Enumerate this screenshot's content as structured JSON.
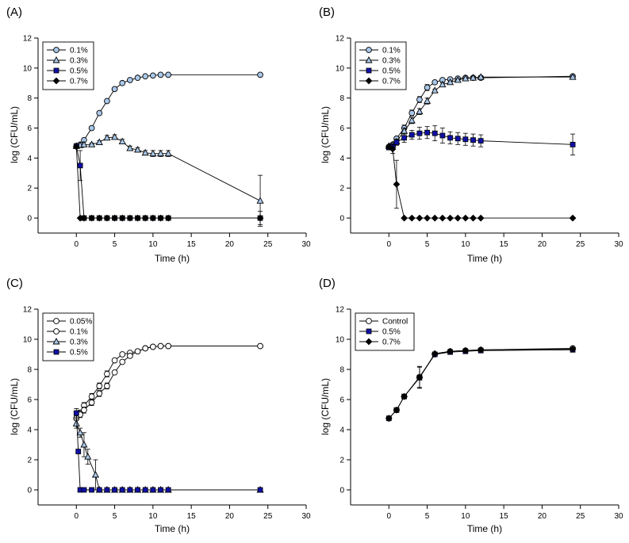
{
  "colors": {
    "light_blue": "#a9c8ea",
    "white": "#ffffff",
    "blue": "#1010a8",
    "black": "#000000",
    "line": "#000000"
  },
  "chart_data": [
    {
      "type": "line",
      "panel_label": "(A)",
      "xlabel": "Time (h)",
      "ylabel": "log (CFU/mL)",
      "xlim": [
        -5,
        30
      ],
      "ylim": [
        -1,
        12
      ],
      "xticks": [
        "0",
        "5",
        "10",
        "15",
        "20",
        "25",
        "30"
      ],
      "yticks": [
        "0",
        "2",
        "4",
        "6",
        "8",
        "10",
        "12"
      ],
      "legend_position": "top-left",
      "series": [
        {
          "name": "0.1%",
          "marker": "circle",
          "fill": "light_blue",
          "x": [
            0,
            0.5,
            1,
            2,
            3,
            4,
            5,
            6,
            7,
            8,
            9,
            10,
            11,
            12,
            24
          ],
          "y": [
            4.8,
            4.9,
            5.2,
            6.0,
            7.0,
            7.8,
            8.6,
            9.0,
            9.2,
            9.35,
            9.45,
            9.5,
            9.55,
            9.55,
            9.55
          ]
        },
        {
          "name": "0.3%",
          "marker": "triangle",
          "fill": "light_blue",
          "x": [
            0,
            0.5,
            1,
            2,
            3,
            4,
            5,
            6,
            7,
            8,
            9,
            10,
            11,
            12,
            24
          ],
          "y": [
            4.8,
            4.85,
            4.9,
            4.9,
            5.05,
            5.35,
            5.4,
            5.1,
            4.65,
            4.55,
            4.35,
            4.3,
            4.3,
            4.3,
            1.15
          ],
          "err": [
            0,
            0,
            0,
            0.1,
            0.1,
            0.15,
            0.15,
            0.15,
            0.15,
            0.15,
            0.15,
            0.2,
            0.2,
            0.2,
            1.7
          ]
        },
        {
          "name": "0.5%",
          "marker": "square",
          "fill": "blue",
          "x": [
            0,
            0.5,
            1,
            2,
            3,
            4,
            5,
            6,
            7,
            8,
            9,
            10,
            11,
            12,
            24
          ],
          "y": [
            4.8,
            3.5,
            0,
            0,
            0,
            0,
            0,
            0,
            0,
            0,
            0,
            0,
            0,
            0,
            0
          ],
          "err": [
            0,
            1.0,
            0,
            0,
            0,
            0,
            0,
            0,
            0,
            0,
            0,
            0,
            0,
            0,
            0
          ]
        },
        {
          "name": "0.7%",
          "marker": "diamond",
          "fill": "black",
          "x": [
            0,
            0.5,
            1,
            2,
            3,
            4,
            5,
            6,
            7,
            8,
            9,
            10,
            11,
            12,
            24
          ],
          "y": [
            4.75,
            0,
            0,
            0,
            0,
            0,
            0,
            0,
            0,
            0,
            0,
            0,
            0,
            0,
            0
          ],
          "err": [
            0,
            0,
            0,
            0,
            0,
            0,
            0,
            0,
            0,
            0,
            0,
            0,
            0,
            0,
            0.45
          ]
        }
      ]
    },
    {
      "type": "line",
      "panel_label": "(B)",
      "xlabel": "Time (h)",
      "ylabel": "log (CFU/mL)",
      "xlim": [
        -5,
        30
      ],
      "ylim": [
        -1,
        12
      ],
      "xticks": [
        "0",
        "5",
        "10",
        "15",
        "20",
        "25",
        "30"
      ],
      "yticks": [
        "0",
        "2",
        "4",
        "6",
        "8",
        "10",
        "12"
      ],
      "legend_position": "top-left",
      "series": [
        {
          "name": "0.1%",
          "marker": "circle",
          "fill": "light_blue",
          "x": [
            0,
            0.5,
            1,
            2,
            3,
            4,
            5,
            6,
            7,
            8,
            9,
            10,
            11,
            12,
            24
          ],
          "y": [
            4.75,
            4.9,
            5.3,
            6.0,
            7.0,
            7.9,
            8.7,
            9.05,
            9.2,
            9.25,
            9.3,
            9.35,
            9.35,
            9.35,
            9.45
          ],
          "err": [
            0,
            0,
            0.1,
            0.2,
            0.2,
            0.2,
            0.2,
            0.1,
            0.1,
            0.1,
            0.1,
            0.1,
            0.1,
            0.1,
            0.1
          ]
        },
        {
          "name": "0.3%",
          "marker": "triangle",
          "fill": "light_blue",
          "x": [
            0,
            0.5,
            1,
            2,
            3,
            4,
            5,
            6,
            7,
            8,
            9,
            10,
            11,
            12,
            24
          ],
          "y": [
            4.8,
            4.9,
            5.1,
            5.8,
            6.5,
            7.1,
            7.8,
            8.5,
            8.9,
            9.05,
            9.2,
            9.3,
            9.35,
            9.4,
            9.4
          ],
          "err": [
            0,
            0,
            0.1,
            0.2,
            0.2,
            0.2,
            0.2,
            0.1,
            0.1,
            0.1,
            0.1,
            0.1,
            0.1,
            0.1,
            0.1
          ]
        },
        {
          "name": "0.5%",
          "marker": "square",
          "fill": "blue",
          "x": [
            0,
            0.5,
            1,
            2,
            3,
            4,
            5,
            6,
            7,
            8,
            9,
            10,
            11,
            12,
            24
          ],
          "y": [
            4.7,
            4.8,
            5.05,
            5.35,
            5.55,
            5.65,
            5.7,
            5.65,
            5.5,
            5.35,
            5.3,
            5.25,
            5.2,
            5.15,
            4.9
          ],
          "err": [
            0,
            0,
            0.2,
            0.3,
            0.3,
            0.4,
            0.4,
            0.5,
            0.5,
            0.4,
            0.4,
            0.4,
            0.4,
            0.4,
            0.7
          ]
        },
        {
          "name": "0.7%",
          "marker": "diamond",
          "fill": "black",
          "x": [
            0,
            0.5,
            1,
            2,
            3,
            4,
            5,
            6,
            7,
            8,
            9,
            10,
            11,
            12,
            24
          ],
          "y": [
            4.75,
            4.6,
            2.25,
            0,
            0,
            0,
            0,
            0,
            0,
            0,
            0,
            0,
            0,
            0,
            0
          ],
          "err": [
            0,
            0.3,
            1.6,
            0,
            0,
            0,
            0,
            0,
            0,
            0,
            0,
            0,
            0,
            0,
            0
          ]
        }
      ]
    },
    {
      "type": "line",
      "panel_label": "(C)",
      "xlabel": "Time (h)",
      "ylabel": "log (CFU/mL)",
      "xlim": [
        -5,
        30
      ],
      "ylim": [
        -1,
        12
      ],
      "xticks": [
        "0",
        "5",
        "10",
        "15",
        "20",
        "25",
        "30"
      ],
      "yticks": [
        "0",
        "2",
        "4",
        "6",
        "8",
        "10",
        "12"
      ],
      "legend_position": "top-left",
      "series": [
        {
          "name": "0.05%",
          "marker": "circle",
          "fill": "white",
          "x": [
            0,
            0.5,
            1,
            2,
            3,
            4,
            5,
            6,
            7,
            8,
            9,
            10,
            11,
            12,
            24
          ],
          "y": [
            4.75,
            5.1,
            5.6,
            6.2,
            6.9,
            7.7,
            8.6,
            9.0,
            9.1,
            9.2,
            9.4,
            9.5,
            9.55,
            9.55,
            9.55
          ],
          "err": [
            0,
            0.2,
            0.2,
            0.2,
            0.2,
            0.2,
            0.1,
            0.1,
            0.1,
            0.1,
            0.1,
            0.1,
            0.1,
            0.1,
            0.1
          ]
        },
        {
          "name": "0.1%",
          "marker": "circle",
          "fill": "white",
          "x": [
            0,
            0.5,
            1,
            2,
            3,
            4,
            5,
            6,
            7,
            8,
            9,
            10,
            11,
            12,
            24
          ],
          "y": [
            4.75,
            5.0,
            5.3,
            5.8,
            6.4,
            6.9,
            7.8,
            8.5,
            8.9,
            9.2,
            9.4,
            9.5,
            9.55,
            9.55,
            9.55
          ],
          "err": [
            0,
            0.2,
            0.2,
            0.2,
            0.2,
            0.2,
            0.1,
            0.1,
            0.1,
            0.1,
            0.1,
            0.1,
            0.1,
            0.1,
            0.1
          ]
        },
        {
          "name": "0.3%",
          "marker": "triangle",
          "fill": "light_blue",
          "x": [
            0,
            0.5,
            1,
            1.5,
            2.5,
            3,
            4,
            5,
            6,
            7,
            8,
            9,
            10,
            11,
            12,
            24
          ],
          "y": [
            4.4,
            3.8,
            3.0,
            2.2,
            1.0,
            0,
            0,
            0,
            0,
            0,
            0,
            0,
            0,
            0,
            0,
            0
          ],
          "err": [
            0.3,
            0.3,
            0.8,
            0.5,
            1.0,
            0,
            0,
            0,
            0,
            0,
            0,
            0,
            0,
            0,
            0,
            0
          ]
        },
        {
          "name": "0.5%",
          "marker": "square",
          "fill": "blue",
          "x": [
            0,
            0.25,
            0.5,
            1,
            2,
            3,
            4,
            5,
            6,
            7,
            8,
            9,
            10,
            11,
            12,
            24
          ],
          "y": [
            5.1,
            2.55,
            0,
            0,
            0,
            0,
            0,
            0,
            0,
            0,
            0,
            0,
            0,
            0,
            0,
            0
          ],
          "err": [
            0.3,
            0,
            0,
            0,
            0,
            0,
            0,
            0,
            0,
            0,
            0,
            0,
            0,
            0,
            0,
            0
          ]
        }
      ]
    },
    {
      "type": "line",
      "panel_label": "(D)",
      "xlabel": "Time (h)",
      "ylabel": "log (CFU/mL)",
      "xlim": [
        -5,
        30
      ],
      "ylim": [
        -1,
        12
      ],
      "xticks": [
        "0",
        "5",
        "10",
        "15",
        "20",
        "25",
        "30"
      ],
      "yticks": [
        "0",
        "2",
        "4",
        "6",
        "8",
        "10",
        "12"
      ],
      "legend_position": "top-left",
      "series": [
        {
          "name": "Control",
          "marker": "circle",
          "fill": "white",
          "x": [
            0,
            1,
            2,
            4,
            6,
            8,
            10,
            12,
            24
          ],
          "y": [
            4.75,
            5.3,
            6.2,
            7.5,
            9.0,
            9.2,
            9.25,
            9.3,
            9.4
          ],
          "err": [
            0,
            0.1,
            0.1,
            0.7,
            0.1,
            0.1,
            0.1,
            0.1,
            0.1
          ]
        },
        {
          "name": "0.5%",
          "marker": "square",
          "fill": "blue",
          "x": [
            0,
            1,
            2,
            4,
            6,
            8,
            10,
            12,
            24
          ],
          "y": [
            4.75,
            5.3,
            6.2,
            7.45,
            9.0,
            9.15,
            9.2,
            9.25,
            9.3
          ],
          "err": [
            0,
            0.1,
            0.1,
            0.7,
            0.1,
            0.1,
            0.1,
            0.1,
            0.1
          ]
        },
        {
          "name": "0.7%",
          "marker": "diamond",
          "fill": "black",
          "x": [
            0,
            1,
            2,
            4,
            6,
            8,
            10,
            12,
            24
          ],
          "y": [
            4.75,
            5.3,
            6.2,
            7.45,
            9.05,
            9.2,
            9.25,
            9.3,
            9.35
          ],
          "err": [
            0,
            0.1,
            0.1,
            0.7,
            0.1,
            0.1,
            0.1,
            0.1,
            0.1
          ]
        }
      ]
    }
  ]
}
